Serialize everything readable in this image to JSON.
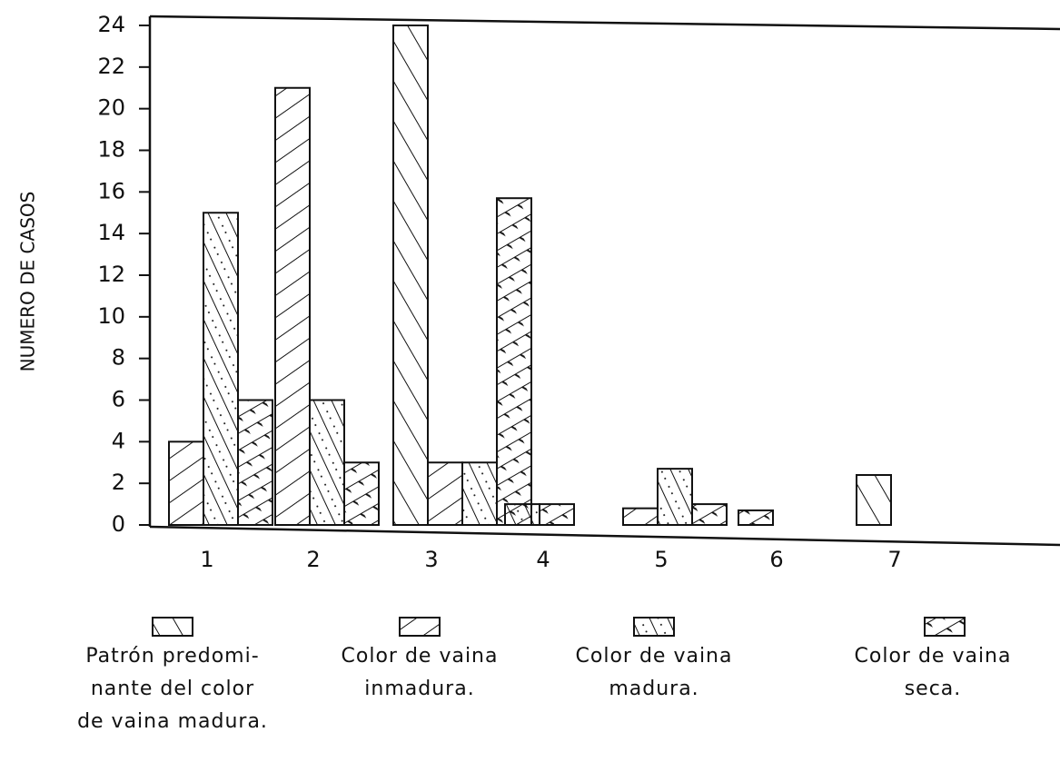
{
  "chart_data": {
    "type": "bar",
    "ylabel": "NUMERO DE CASOS",
    "categories": [
      "1",
      "2",
      "3",
      "4",
      "5",
      "6",
      "7"
    ],
    "series": [
      {
        "name": "Patrón predomi-\nnante del color\nde vaina madura.",
        "color": "#111111",
        "pattern": "forward",
        "values": [
          null,
          null,
          24,
          null,
          null,
          null,
          2.4
        ]
      },
      {
        "name": "Color de vaina\ninmadura.",
        "color": "#111111",
        "pattern": "back",
        "values": [
          4,
          21,
          3,
          null,
          0.8,
          null,
          null
        ]
      },
      {
        "name": "Color de vaina\nmadura.",
        "color": "#111111",
        "pattern": "forward-dots",
        "values": [
          15,
          6,
          3,
          1,
          2.7,
          null,
          null
        ]
      },
      {
        "name": "Color de vaina\nseca.",
        "color": "#111111",
        "pattern": "cross",
        "values": [
          6,
          3,
          15.7,
          1,
          1,
          0.7,
          null
        ]
      }
    ],
    "ylim": [
      0,
      24
    ],
    "yticks": [
      0,
      2,
      4,
      6,
      8,
      10,
      12,
      14,
      16,
      18,
      20,
      22,
      24
    ],
    "grid": false
  }
}
